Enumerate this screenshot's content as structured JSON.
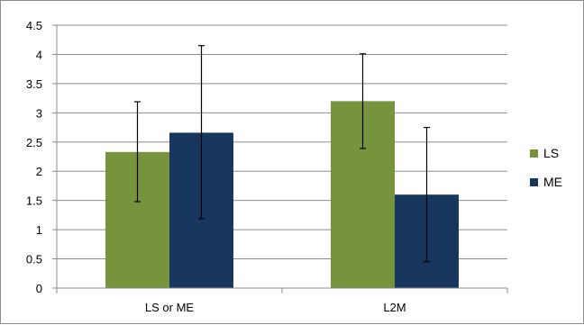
{
  "chart_data": {
    "type": "bar",
    "categories": [
      "LS or ME",
      "L2M"
    ],
    "series": [
      {
        "name": "LS",
        "values": [
          2.33,
          3.2
        ],
        "error_low": [
          1.48,
          2.39
        ],
        "error_high": [
          3.19,
          4.01
        ],
        "color": "#77933c"
      },
      {
        "name": "ME",
        "values": [
          2.66,
          1.6
        ],
        "error_low": [
          1.19,
          0.45
        ],
        "error_high": [
          4.15,
          2.75
        ],
        "color": "#17375e"
      }
    ],
    "ylim": [
      0,
      4.5
    ],
    "yticks": [
      "0",
      "0.5",
      "1",
      "1.5",
      "2",
      "2.5",
      "3",
      "3.5",
      "4",
      "4.5"
    ],
    "grid": true,
    "legend": "right"
  }
}
